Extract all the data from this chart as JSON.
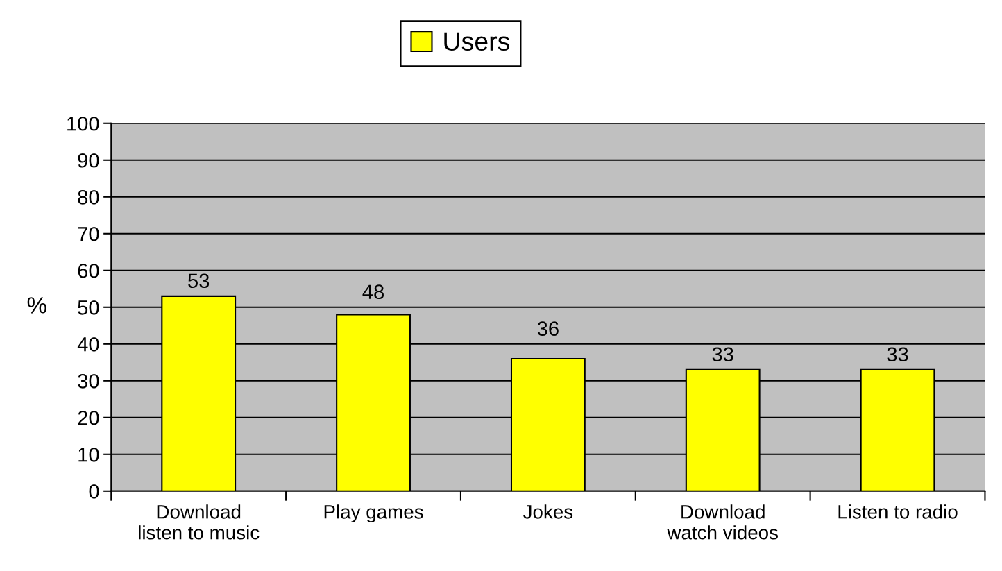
{
  "chart_data": {
    "type": "bar",
    "ylabel": "%",
    "categories": [
      "Download\nlisten to music",
      "Play games",
      "Jokes",
      "Download\nwatch videos",
      "Listen to radio"
    ],
    "series": [
      {
        "name": "Users",
        "color": "#ffff00",
        "values": [
          53,
          48,
          36,
          33,
          33
        ]
      }
    ],
    "ylim": [
      0,
      100
    ],
    "yticks": [
      0,
      10,
      20,
      30,
      40,
      50,
      60,
      70,
      80,
      90,
      100
    ],
    "grid": "y",
    "legend": "top",
    "data_labels": true
  }
}
